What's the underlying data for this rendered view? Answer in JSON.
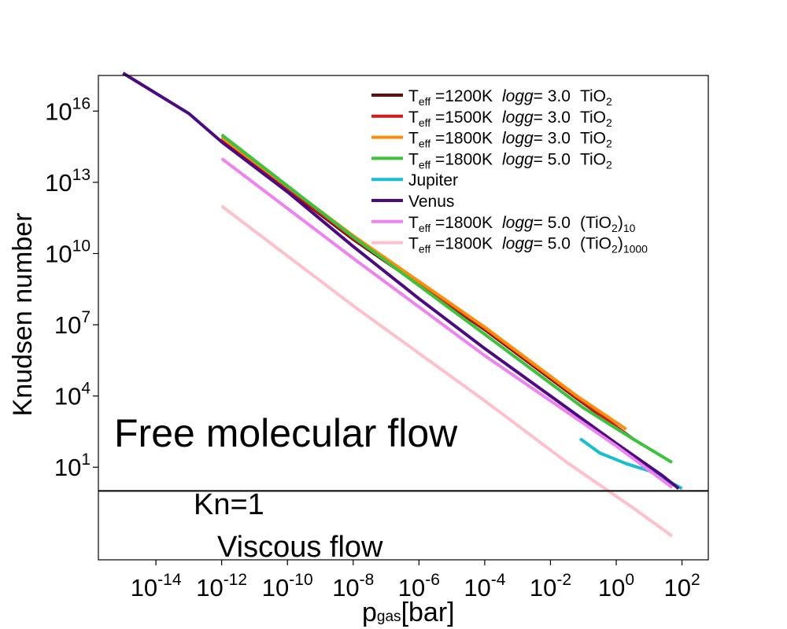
{
  "chart_data": {
    "type": "line",
    "title": "",
    "xlabel": {
      "main": "p",
      "sub": "gas",
      "rest": "[bar]"
    },
    "ylabel": "Knudsen number",
    "xscale": "log",
    "yscale": "log",
    "xlim_exp": [
      -15.75,
      2.8
    ],
    "ylim_exp": [
      -2.9,
      17.5
    ],
    "x_tick_exps": [
      -14,
      -12,
      -10,
      -8,
      -6,
      -4,
      -2,
      0,
      2
    ],
    "y_tick_exps": [
      1,
      4,
      7,
      10,
      13,
      16
    ],
    "tick_base": "10",
    "legend_position": "top-right",
    "reference_line": {
      "y_exp": 0,
      "label": "Kn=1"
    },
    "annotations": {
      "upper": "Free molecular flow",
      "lower": "Viscous flow"
    },
    "series": [
      {
        "name": "Teff=1200K logg=3.0 TiO2",
        "color": "#6b0a0a",
        "label": {
          "teff": "=1200K",
          "logg": "= 3.0",
          "species": "TiO",
          "species_sub": "2",
          "species_post": ""
        },
        "points": [
          [
            -12,
            14.8
          ],
          [
            -8,
            10.6
          ],
          [
            -4,
            6.8
          ],
          [
            -1.2,
            3.9
          ],
          [
            0.5,
            2.2
          ]
        ]
      },
      {
        "name": "Teff=1500K logg=3.0 TiO2",
        "color": "#d11a1a",
        "label": {
          "teff": "=1500K",
          "logg": "= 3.0",
          "species": "TiO",
          "species_sub": "2",
          "species_post": ""
        },
        "points": [
          [
            -12,
            14.85
          ],
          [
            -8,
            10.65
          ],
          [
            -4,
            6.85
          ],
          [
            -1.2,
            3.95
          ],
          [
            0.3,
            2.4
          ]
        ]
      },
      {
        "name": "Teff=1800K logg=3.0 TiO2",
        "color": "#ff8c0a",
        "label": {
          "teff": "=1800K",
          "logg": "= 3.0",
          "species": "TiO",
          "species_sub": "2",
          "species_post": ""
        },
        "points": [
          [
            -12,
            14.9
          ],
          [
            -8,
            10.75
          ],
          [
            -4,
            6.9
          ],
          [
            -1.2,
            4.0
          ],
          [
            0.3,
            2.6
          ]
        ]
      },
      {
        "name": "Teff=1800K logg=5.0 TiO2",
        "color": "#3cc23c",
        "label": {
          "teff": "=1800K",
          "logg": "= 5.0",
          "species": "TiO",
          "species_sub": "2",
          "species_post": ""
        },
        "points": [
          [
            -12,
            15.0
          ],
          [
            -8,
            10.7
          ],
          [
            -4,
            6.6
          ],
          [
            -1,
            3.5
          ],
          [
            0.5,
            2.2
          ],
          [
            1.7,
            1.2
          ]
        ]
      },
      {
        "name": "Jupiter",
        "color": "#17becf",
        "label": {
          "plain": "Jupiter"
        },
        "points": [
          [
            -1.1,
            2.2
          ],
          [
            -0.5,
            1.6
          ],
          [
            0.3,
            1.15
          ],
          [
            1,
            0.85
          ],
          [
            2,
            0.1
          ]
        ]
      },
      {
        "name": "Venus",
        "color": "#4b0a82",
        "label": {
          "plain": "Venus"
        },
        "points": [
          [
            -15,
            17.6
          ],
          [
            -13,
            15.9
          ],
          [
            -12,
            14.7
          ],
          [
            -10,
            12.6
          ],
          [
            -8,
            10.3
          ],
          [
            -6,
            8.1
          ],
          [
            -4,
            6.0
          ],
          [
            -2,
            4.0
          ],
          [
            0,
            2.0
          ],
          [
            1.4,
            0.65
          ],
          [
            1.9,
            0.1
          ]
        ]
      },
      {
        "name": "Teff=1800K logg=5.0 (TiO2)10",
        "color": "#ee82ee",
        "label": {
          "teff": "=1800K",
          "logg": "= 5.0",
          "species": "(TiO",
          "species_sub": "2",
          "species_post": ")",
          "post_sub": "10"
        },
        "points": [
          [
            -12,
            14.0
          ],
          [
            -8,
            9.8
          ],
          [
            -4,
            5.7
          ],
          [
            0,
            1.9
          ],
          [
            1.7,
            0.15
          ]
        ]
      },
      {
        "name": "Teff=1800K logg=5.0 (TiO2)1000",
        "color": "#ffc0cb",
        "label": {
          "teff": "=1800K",
          "logg": "= 5.0",
          "species": "(TiO",
          "species_sub": "2",
          "species_post": ")",
          "post_sub": "1000"
        },
        "points": [
          [
            -12,
            12.0
          ],
          [
            -8,
            7.8
          ],
          [
            -4,
            3.8
          ],
          [
            -1.5,
            1.2
          ],
          [
            0.5,
            -0.7
          ],
          [
            1.7,
            -1.9
          ]
        ]
      }
    ]
  }
}
